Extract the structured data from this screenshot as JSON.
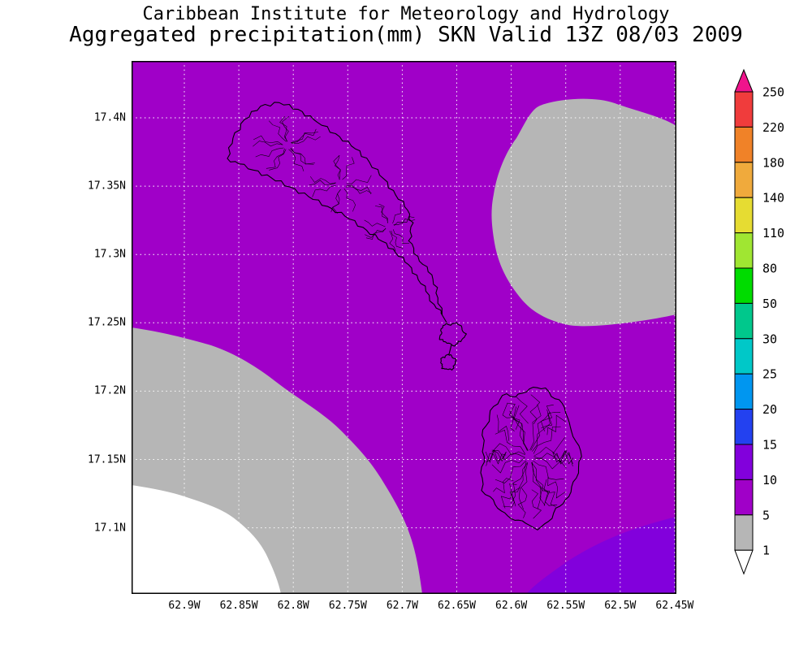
{
  "title": {
    "line1": "Caribbean Institute for Meteorology and Hydrology",
    "line2": "Aggregated precipitation(mm) SKN Valid 13Z 08/03 2009"
  },
  "map": {
    "x_axis_labels": [
      "62.9W",
      "62.85W",
      "62.8W",
      "62.75W",
      "62.7W",
      "62.65W",
      "62.6W",
      "62.55W",
      "62.5W",
      "62.45W"
    ],
    "y_axis_labels": [
      "17.4N",
      "17.35N",
      "17.3N",
      "17.25N",
      "17.2N",
      "17.15N",
      "17.1N"
    ]
  },
  "colors": {
    "background": "#A000C8",
    "gray_region": "#B6B6B6",
    "white_region": "#FFFFFF",
    "violet_region": "#8200DC",
    "grid": "#FFFFFF",
    "island_outline": "#000000",
    "frame": "#000000"
  },
  "colorbar": {
    "labels": [
      "250",
      "220",
      "180",
      "140",
      "110",
      "80",
      "50",
      "30",
      "25",
      "20",
      "15",
      "10",
      "5",
      "1"
    ],
    "segment_colors": [
      "#F03C3C",
      "#F08228",
      "#F0AA3C",
      "#E6DC32",
      "#A0E632",
      "#00DC00",
      "#00C88C",
      "#00C8C8",
      "#0096F0",
      "#2341F0",
      "#8200DC",
      "#A000C8",
      "#B6B6B6"
    ],
    "above_max_color": "#F0148C",
    "below_min_color": "#FFFFFF"
  },
  "chart_data": {
    "type": "heatmap",
    "title": "Aggregated precipitation(mm) SKN Valid 13Z 08/03 2009",
    "subtitle": "Caribbean Institute for Meteorology and Hydrology",
    "xlabel_ticks": [
      "62.9W",
      "62.85W",
      "62.8W",
      "62.75W",
      "62.7W",
      "62.65W",
      "62.6W",
      "62.55W",
      "62.5W",
      "62.45W"
    ],
    "ylabel_ticks": [
      "17.4N",
      "17.35N",
      "17.3N",
      "17.25N",
      "17.2N",
      "17.15N",
      "17.1N"
    ],
    "legend_levels_mm": [
      1,
      5,
      10,
      15,
      20,
      25,
      30,
      50,
      80,
      110,
      140,
      180,
      220,
      250
    ],
    "legend_position": "right",
    "grid": "dotted white at 0.05 degree spacing",
    "visible_value_regions": [
      {
        "value_range_mm": "5-10",
        "color": "#A000C8",
        "location": "most of the domain (background)"
      },
      {
        "value_range_mm": "1-5",
        "color": "#B6B6B6",
        "location": "northeast blob and large southwest/bottom-left area"
      },
      {
        "value_range_mm": "<1",
        "color": "#FFFFFF",
        "location": "bottom-left corner"
      },
      {
        "value_range_mm": "10-15",
        "color": "#8200DC",
        "location": "bottom-right corner"
      }
    ]
  }
}
